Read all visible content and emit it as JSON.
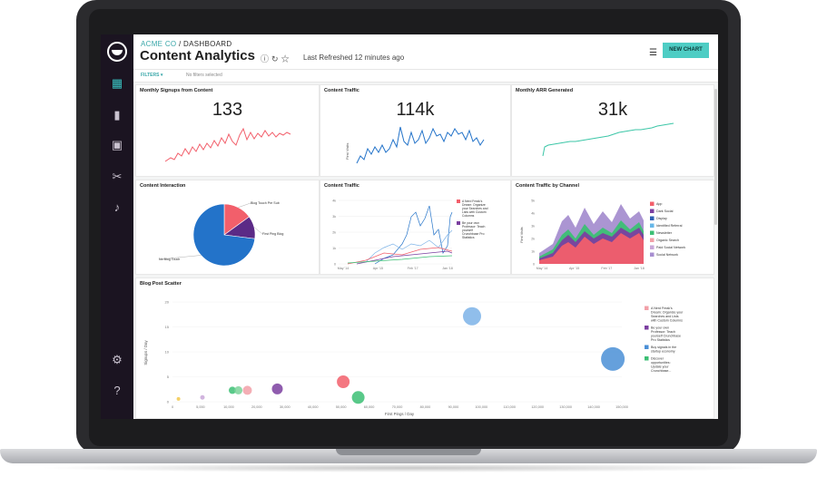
{
  "header": {
    "org": "ACME CO",
    "separator": "/",
    "section": "DASHBOARD",
    "title": "Content Analytics",
    "icons": [
      "info-icon",
      "refresh-icon",
      "star-icon"
    ],
    "last_refreshed": "Last Refreshed 12 minutes ago",
    "new_chart_label": "NEW CHART"
  },
  "filters": {
    "label": "FILTERS",
    "status": "No filters selected"
  },
  "sidebar": {
    "items": [
      "dashboard-icon",
      "bookmark-icon",
      "code-icon",
      "scissors-icon",
      "bell-icon",
      "gear-icon",
      "help-icon"
    ]
  },
  "cards": {
    "signups": {
      "title": "Monthly Signups from Content",
      "value": "133"
    },
    "traffic": {
      "title": "Content Traffic",
      "value": "114k",
      "ylabel": "First Visits"
    },
    "arr": {
      "title": "Monthly ARR Generated",
      "value": "31k"
    },
    "interaction": {
      "title": "Content Interaction"
    },
    "traffic2": {
      "title": "Content Traffic"
    },
    "channel": {
      "title": "Content Traffic by Channel"
    },
    "scatter": {
      "title": "Blog Post Scatter"
    }
  },
  "colors": {
    "accent": "#4ecdc4",
    "sidebar_bg": "#1b1421"
  },
  "chart_data": [
    {
      "type": "pie",
      "title": "Content Interaction",
      "categories": [
        "Blog Touch Pre Sub",
        "First Ping Blog",
        "No Blog Touch"
      ],
      "values": [
        15,
        12,
        73
      ],
      "colors": [
        "#f25f6b",
        "#5b2a86",
        "#2373c9"
      ]
    },
    {
      "type": "line",
      "title": "Content Traffic",
      "x_ticks": [
        "May '14",
        "Apr '15",
        "Feb '17",
        "Jan '18"
      ],
      "y_ticks": [
        "0",
        "1k",
        "2k",
        "3k",
        "4k"
      ],
      "series": [
        {
          "name": "A Nerd Freak's Dream: Organize your Searches and Lists with Custom Columns",
          "color": "#f25f6b"
        },
        {
          "name": "Be your own Professor: Teach yourself Crunchbase Pro Statistics",
          "color": "#7b3fa0"
        }
      ]
    },
    {
      "type": "area",
      "title": "Content Traffic by Channel",
      "ylabel": "First Visits",
      "x_ticks": [
        "May '14",
        "Apr '15",
        "Feb '17",
        "Jan '18"
      ],
      "y_ticks": [
        "0",
        "1k",
        "2k",
        "3k",
        "4k",
        "5k"
      ],
      "legend": [
        "App",
        "Dark Social",
        "Display",
        "Identified Referral",
        "Newsletter",
        "Organic Search",
        "Paid Social Network",
        "Social Network"
      ],
      "legend_colors": [
        "#f25f6b",
        "#7b3fa0",
        "#2d5fb3",
        "#67b7e8",
        "#3cbf74",
        "#f2a0a8",
        "#c9a7d8",
        "#a78fd0"
      ]
    },
    {
      "type": "scatter",
      "title": "Blog Post Scatter",
      "xlabel": "First Pings / Day",
      "ylabel": "Signups / Day",
      "x_ticks": [
        "0",
        "5,000",
        "10,000",
        "20,000",
        "30,000",
        "40,000",
        "50,000",
        "60,000",
        "70,000",
        "80,000",
        "90,000",
        "100,000",
        "110,000",
        "120,000",
        "130,000",
        "140,000",
        "150,000"
      ],
      "y_ticks": [
        "0",
        "5",
        "10",
        "15",
        "20"
      ],
      "legend": [
        "A Nerd Freak's Dream: Organize your Searches and Lists with Custom Columns",
        "Be your own Professor: Teach yourself Crunchbase Pro Statistics",
        "Buy signals in the startup economy",
        "Discover opportunities: Update your Crunchbase..."
      ],
      "legend_colors": [
        "#f2a0a8",
        "#7b3fa0",
        "#4a8fd6",
        "#3cbf74"
      ],
      "points": [
        {
          "x": 2000,
          "y": 1,
          "r": 2,
          "color": "#f2c84b"
        },
        {
          "x": 10000,
          "y": 1.5,
          "r": 2.5,
          "color": "#c9a7d8"
        },
        {
          "x": 20000,
          "y": 4,
          "r": 4,
          "color": "#3cbf74"
        },
        {
          "x": 22000,
          "y": 4,
          "r": 4.5,
          "color": "#7bd49a"
        },
        {
          "x": 25000,
          "y": 4,
          "r": 5,
          "color": "#f2a0a8"
        },
        {
          "x": 35000,
          "y": 4.5,
          "r": 6,
          "color": "#7b3fa0"
        },
        {
          "x": 57000,
          "y": 7,
          "r": 7,
          "color": "#f25f6b"
        },
        {
          "x": 62000,
          "y": 1.5,
          "r": 7,
          "color": "#3cbf74"
        },
        {
          "x": 100000,
          "y": 30,
          "r": 10,
          "color": "#7db3e8"
        },
        {
          "x": 147000,
          "y": 15,
          "r": 13,
          "color": "#4a8fd6"
        }
      ]
    }
  ]
}
